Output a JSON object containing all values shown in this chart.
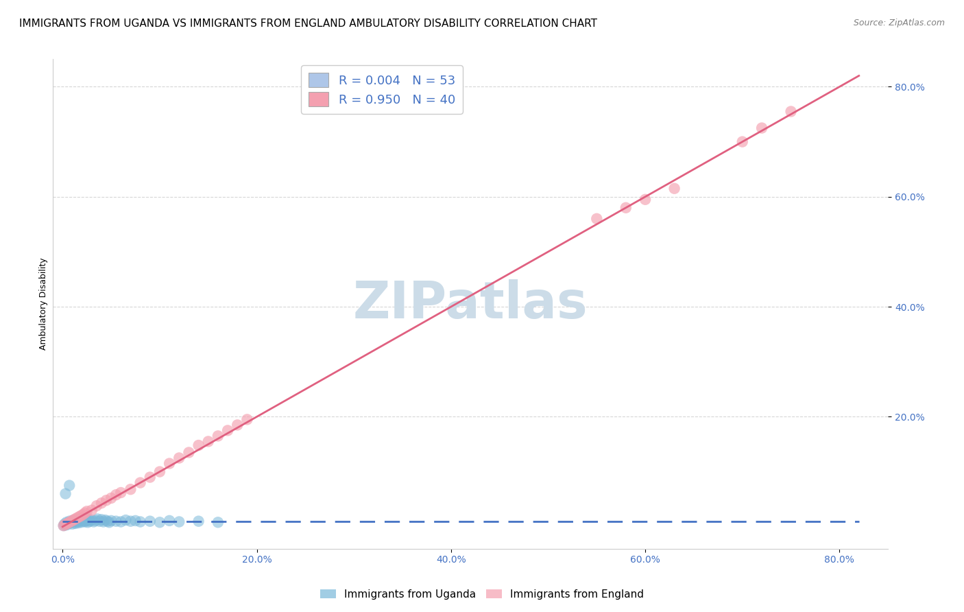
{
  "title": "IMMIGRANTS FROM UGANDA VS IMMIGRANTS FROM ENGLAND AMBULATORY DISABILITY CORRELATION CHART",
  "source": "Source: ZipAtlas.com",
  "ylabel": "Ambulatory Disability",
  "x_tick_labels": [
    "0.0%",
    "20.0%",
    "40.0%",
    "60.0%",
    "80.0%"
  ],
  "x_tick_positions": [
    0.0,
    0.2,
    0.4,
    0.6,
    0.8
  ],
  "y_tick_labels": [
    "20.0%",
    "40.0%",
    "60.0%",
    "80.0%"
  ],
  "y_tick_positions": [
    0.2,
    0.4,
    0.6,
    0.8
  ],
  "xlim": [
    -0.01,
    0.85
  ],
  "ylim": [
    -0.04,
    0.85
  ],
  "legend_color1": "#aec6e8",
  "legend_color2": "#f4a0b0",
  "scatter_color_uganda": "#7ab8d9",
  "scatter_color_england": "#f4a0b0",
  "regression_color_uganda": "#4472c4",
  "regression_color_england": "#e06080",
  "watermark_color": "#ccdce8",
  "R_uganda": 0.004,
  "N_uganda": 53,
  "R_england": 0.95,
  "N_england": 40,
  "uganda_x": [
    0.001,
    0.002,
    0.003,
    0.004,
    0.005,
    0.006,
    0.007,
    0.008,
    0.009,
    0.01,
    0.011,
    0.012,
    0.013,
    0.014,
    0.015,
    0.016,
    0.017,
    0.018,
    0.019,
    0.02,
    0.021,
    0.022,
    0.023,
    0.024,
    0.025,
    0.026,
    0.027,
    0.028,
    0.03,
    0.032,
    0.034,
    0.036,
    0.038,
    0.04,
    0.042,
    0.044,
    0.046,
    0.048,
    0.05,
    0.055,
    0.06,
    0.065,
    0.07,
    0.075,
    0.08,
    0.09,
    0.1,
    0.11,
    0.12,
    0.14,
    0.16,
    0.003,
    0.007
  ],
  "uganda_y": [
    0.002,
    0.005,
    0.003,
    0.008,
    0.004,
    0.006,
    0.01,
    0.007,
    0.009,
    0.005,
    0.012,
    0.008,
    0.006,
    0.011,
    0.009,
    0.007,
    0.013,
    0.01,
    0.008,
    0.015,
    0.012,
    0.01,
    0.009,
    0.014,
    0.011,
    0.008,
    0.013,
    0.01,
    0.012,
    0.009,
    0.011,
    0.014,
    0.01,
    0.013,
    0.009,
    0.012,
    0.01,
    0.008,
    0.011,
    0.01,
    0.009,
    0.012,
    0.01,
    0.011,
    0.009,
    0.01,
    0.008,
    0.011,
    0.009,
    0.01,
    0.008,
    0.06,
    0.075
  ],
  "england_x": [
    0.001,
    0.003,
    0.005,
    0.007,
    0.009,
    0.011,
    0.013,
    0.015,
    0.017,
    0.019,
    0.021,
    0.023,
    0.025,
    0.03,
    0.035,
    0.04,
    0.045,
    0.05,
    0.055,
    0.06,
    0.07,
    0.08,
    0.09,
    0.1,
    0.11,
    0.12,
    0.13,
    0.14,
    0.15,
    0.16,
    0.17,
    0.18,
    0.19,
    0.55,
    0.58,
    0.6,
    0.63,
    0.7,
    0.72,
    0.75
  ],
  "england_y": [
    0.002,
    0.004,
    0.006,
    0.008,
    0.01,
    0.012,
    0.014,
    0.016,
    0.018,
    0.02,
    0.022,
    0.025,
    0.028,
    0.03,
    0.038,
    0.043,
    0.048,
    0.052,
    0.058,
    0.062,
    0.068,
    0.08,
    0.09,
    0.1,
    0.115,
    0.125,
    0.135,
    0.148,
    0.155,
    0.165,
    0.175,
    0.185,
    0.195,
    0.56,
    0.58,
    0.595,
    0.615,
    0.7,
    0.725,
    0.755
  ],
  "bottom_legend": [
    "Immigrants from Uganda",
    "Immigrants from England"
  ],
  "title_fontsize": 11,
  "axis_label_fontsize": 9,
  "tick_fontsize": 10,
  "source_fontsize": 9,
  "legend_fontsize": 13
}
